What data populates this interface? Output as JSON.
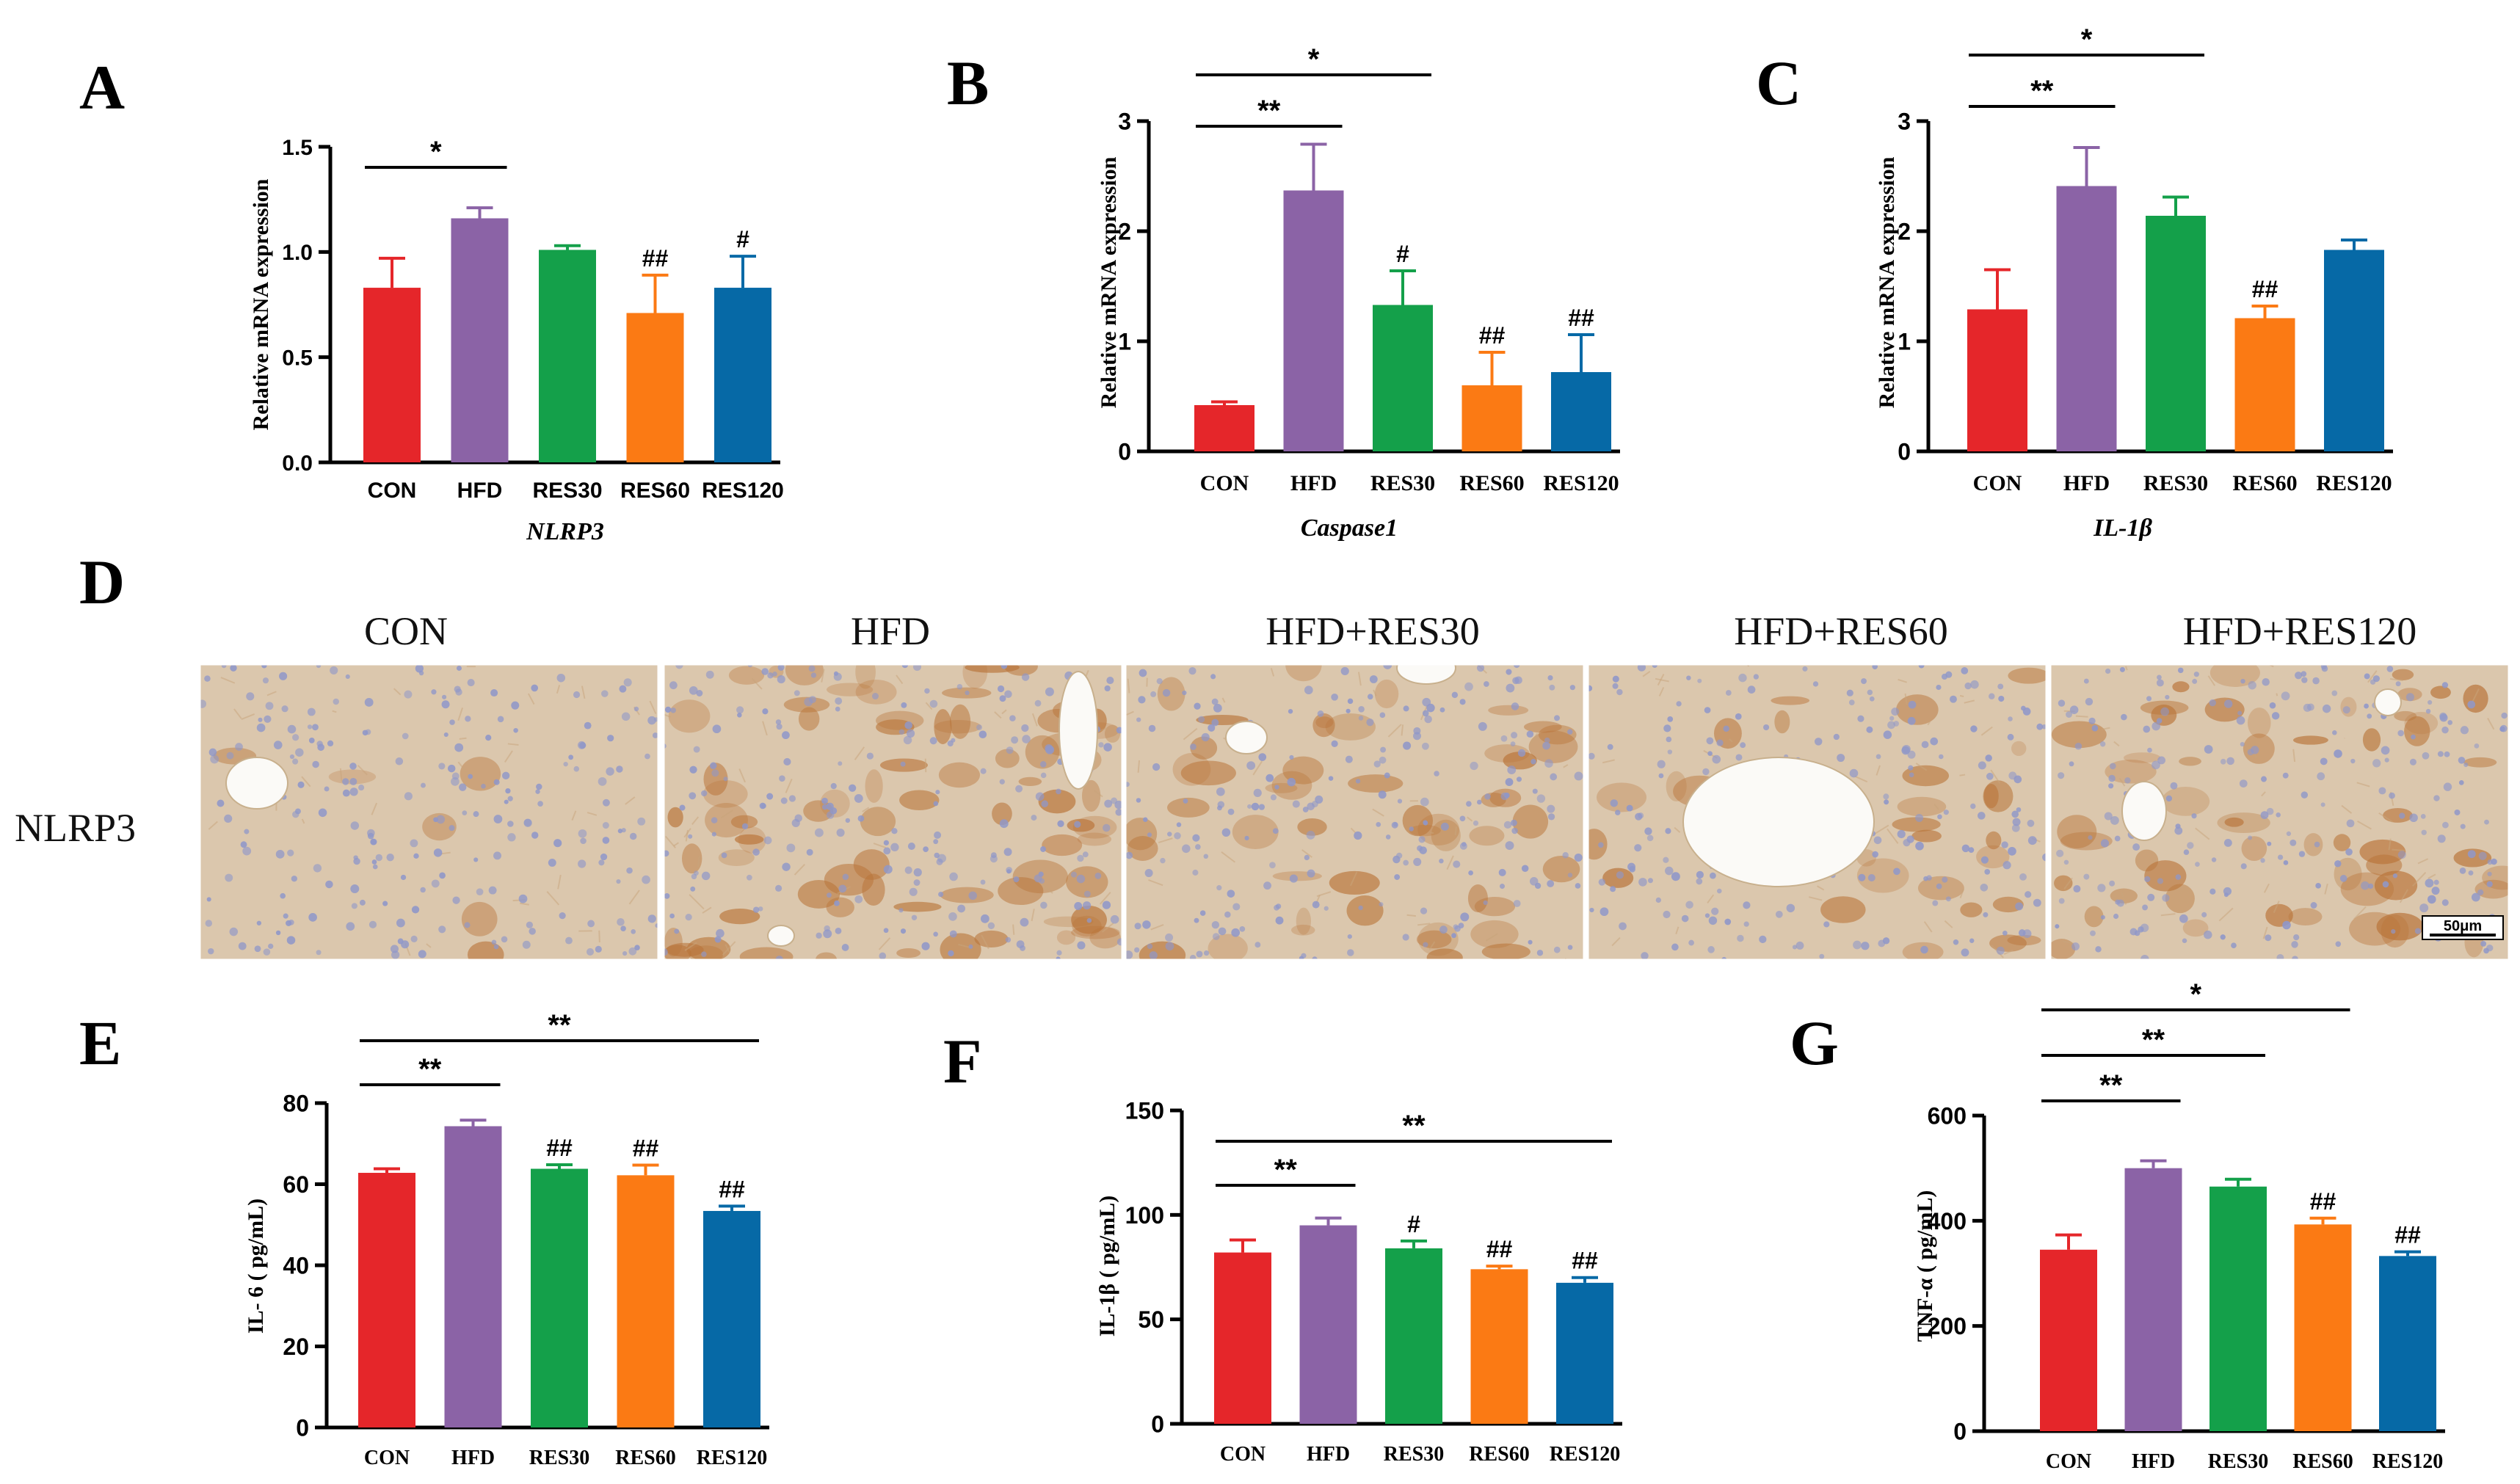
{
  "colors": {
    "CON": "#e5262a",
    "HFD": "#8b63a6",
    "RES30": "#14a04a",
    "RES60": "#fb7a14",
    "RES120": "#0669a6",
    "tissue_bg": "#dbc7ad",
    "stain_brown": "#b9753a",
    "nuclei": "#8f97c9"
  },
  "chart_data": [
    {
      "type": "bar",
      "panel": "A",
      "categories": [
        "CON",
        "HFD",
        "RES30",
        "RES60",
        "RES120"
      ],
      "values": [
        0.83,
        1.16,
        1.01,
        0.71,
        0.83
      ],
      "errors": [
        0.14,
        0.05,
        0.02,
        0.18,
        0.15
      ],
      "xlabel": "NLRP3",
      "ylabel": "Relative mRNA expression",
      "ylim": [
        0,
        1.5
      ],
      "yticks": [
        "0.0",
        "0.5",
        "1.0",
        "1.5"
      ],
      "grid": false,
      "annotations": [
        {
          "type": "bracket",
          "from": "CON",
          "to": "HFD",
          "label": "*"
        },
        {
          "type": "mark",
          "category": "RES60",
          "label": "##"
        },
        {
          "type": "mark",
          "category": "RES120",
          "label": "#"
        }
      ]
    },
    {
      "type": "bar",
      "panel": "B",
      "categories": [
        "CON",
        "HFD",
        "RES30",
        "RES60",
        "RES120"
      ],
      "values": [
        0.42,
        2.37,
        1.33,
        0.6,
        0.72
      ],
      "errors": [
        0.03,
        0.42,
        0.31,
        0.3,
        0.34
      ],
      "xlabel": "Caspase1",
      "ylabel": "Relative mRNA expression",
      "ylim": [
        0,
        3
      ],
      "yticks": [
        "0",
        "1",
        "2",
        "3"
      ],
      "grid": false,
      "annotations": [
        {
          "type": "bracket",
          "from": "CON",
          "to": "HFD",
          "label": "**"
        },
        {
          "type": "bracket",
          "from": "CON",
          "to": "RES30",
          "label": "*"
        },
        {
          "type": "mark",
          "category": "RES30",
          "label": "#"
        },
        {
          "type": "mark",
          "category": "RES60",
          "label": "##"
        },
        {
          "type": "mark",
          "category": "RES120",
          "label": "##"
        }
      ]
    },
    {
      "type": "bar",
      "panel": "C",
      "categories": [
        "CON",
        "HFD",
        "RES30",
        "RES60",
        "RES120"
      ],
      "values": [
        1.29,
        2.41,
        2.14,
        1.21,
        1.83
      ],
      "errors": [
        0.36,
        0.35,
        0.17,
        0.11,
        0.09
      ],
      "xlabel": "IL-1β",
      "ylabel": "Relative mRNA expression",
      "ylim": [
        0,
        3
      ],
      "yticks": [
        "0",
        "1",
        "2",
        "3"
      ],
      "grid": false,
      "annotations": [
        {
          "type": "bracket",
          "from": "CON",
          "to": "HFD",
          "label": "**"
        },
        {
          "type": "bracket",
          "from": "CON",
          "to": "RES30",
          "label": "*"
        },
        {
          "type": "mark",
          "category": "RES60",
          "label": "##"
        }
      ]
    },
    {
      "type": "bar",
      "panel": "E",
      "categories": [
        "CON",
        "HFD",
        "RES30",
        "RES60",
        "RES120"
      ],
      "values": [
        62.8,
        74.3,
        63.8,
        62.2,
        53.4
      ],
      "errors": [
        1.0,
        1.5,
        1.0,
        2.5,
        1.2
      ],
      "xlabel": "",
      "ylabel": "IL- 6 ( pg/mL)",
      "ylim": [
        0,
        80
      ],
      "yticks": [
        "0",
        "20",
        "40",
        "60",
        "80"
      ],
      "grid": false,
      "annotations": [
        {
          "type": "bracket",
          "from": "CON",
          "to": "HFD",
          "label": "**"
        },
        {
          "type": "bracket",
          "from": "CON",
          "to": "RES120",
          "label": "**"
        },
        {
          "type": "mark",
          "category": "RES30",
          "label": "##"
        },
        {
          "type": "mark",
          "category": "RES60",
          "label": "##"
        },
        {
          "type": "mark",
          "category": "RES120",
          "label": "##"
        }
      ]
    },
    {
      "type": "bar",
      "panel": "F",
      "categories": [
        "CON",
        "HFD",
        "RES30",
        "RES60",
        "RES120"
      ],
      "values": [
        82,
        95,
        84,
        74,
        67.5
      ],
      "errors": [
        6,
        3.5,
        3.5,
        1.5,
        2.5
      ],
      "xlabel": "",
      "ylabel": "IL-1β ( pg/mL)",
      "ylim": [
        0,
        150
      ],
      "yticks": [
        "0",
        "50",
        "100",
        "150"
      ],
      "grid": false,
      "annotations": [
        {
          "type": "bracket",
          "from": "CON",
          "to": "HFD",
          "label": "**"
        },
        {
          "type": "bracket",
          "from": "CON",
          "to": "RES120",
          "label": "**"
        },
        {
          "type": "mark",
          "category": "RES30",
          "label": "#"
        },
        {
          "type": "mark",
          "category": "RES60",
          "label": "##"
        },
        {
          "type": "mark",
          "category": "RES120",
          "label": "##"
        }
      ]
    },
    {
      "type": "bar",
      "panel": "G",
      "categories": [
        "CON",
        "HFD",
        "RES30",
        "RES60",
        "RES120"
      ],
      "values": [
        345,
        500,
        465,
        393,
        333
      ],
      "errors": [
        28,
        14,
        14,
        12,
        8
      ],
      "xlabel": "",
      "ylabel": "TNF-α ( pg/mL)",
      "ylim": [
        0,
        600
      ],
      "yticks": [
        "0",
        "200",
        "400",
        "600"
      ],
      "grid": false,
      "annotations": [
        {
          "type": "bracket",
          "from": "CON",
          "to": "HFD",
          "label": "**"
        },
        {
          "type": "bracket",
          "from": "CON",
          "to": "RES30",
          "label": "**"
        },
        {
          "type": "bracket",
          "from": "CON",
          "to": "RES60",
          "label": "*"
        },
        {
          "type": "mark",
          "category": "RES60",
          "label": "##"
        },
        {
          "type": "mark",
          "category": "RES120",
          "label": "##"
        }
      ]
    }
  ],
  "histology": {
    "letter": "D",
    "row_label": "NLRP3",
    "columns": [
      "CON",
      "HFD",
      "HFD+RES30",
      "HFD+RES60",
      "HFD+RES120"
    ],
    "scale_bar": "50μm"
  }
}
